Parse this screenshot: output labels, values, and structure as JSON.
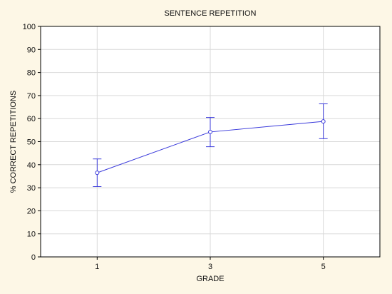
{
  "chart_data": {
    "type": "line",
    "title": "SENTENCE REPETITION",
    "xlabel": "GRADE",
    "ylabel": "% CORRECT REPETITIONS",
    "x": [
      1,
      3,
      5
    ],
    "x_tick_labels": [
      "1",
      "3",
      "5"
    ],
    "ylim": [
      0,
      100
    ],
    "y_ticks": [
      0,
      10,
      20,
      30,
      40,
      50,
      60,
      70,
      80,
      90,
      100
    ],
    "grid": true,
    "series": [
      {
        "values": [
          36.5,
          54.2,
          58.8
        ],
        "error_low": [
          30.5,
          47.8,
          51.3
        ],
        "error_high": [
          42.5,
          60.5,
          66.4
        ],
        "color": "#3a3adb",
        "marker": "open-circle"
      }
    ]
  },
  "colors": {
    "figure_background": "#fdf7e6",
    "plot_background": "#ffffff",
    "grid": "#d9d9d9",
    "axis": "#000000"
  }
}
